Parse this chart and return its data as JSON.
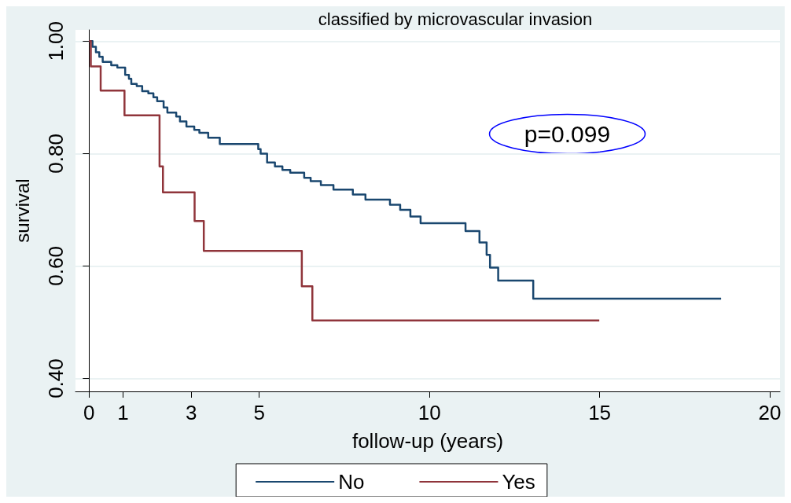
{
  "chart_data": {
    "type": "step",
    "title": "classified by microvascular invasion",
    "xlabel": "follow-up (years)",
    "ylabel": "survival",
    "xlim": [
      -0.4,
      20.3
    ],
    "xticks": [
      0,
      1,
      3,
      5,
      10,
      15,
      20
    ],
    "ylim": [
      0.377,
      1.02
    ],
    "yticks": [
      {
        "value": 0.4,
        "label": "0.40"
      },
      {
        "value": 0.6,
        "label": "0.60"
      },
      {
        "value": 0.8,
        "label": "0.80"
      },
      {
        "value": 1.0,
        "label": "1.00"
      }
    ],
    "grid": "y",
    "legend": "bottom",
    "marker": "none",
    "line_style": "solid",
    "annotations": [
      "p=0.099"
    ],
    "series": [
      {
        "name": "No",
        "color": "#1a476f",
        "x": [
          0,
          0.1,
          0.2,
          0.3,
          0.4,
          0.65,
          0.83,
          1.06,
          1.17,
          1.24,
          1.4,
          1.56,
          1.74,
          1.89,
          2.0,
          2.19,
          2.3,
          2.56,
          2.67,
          2.86,
          3.09,
          3.24,
          3.5,
          3.84,
          4.97,
          5.04,
          5.23,
          5.46,
          5.68,
          5.91,
          6.32,
          6.51,
          6.81,
          7.18,
          7.75,
          8.12,
          8.84,
          9.14,
          9.44,
          9.74,
          11.06,
          11.47,
          11.68,
          11.78,
          12.02,
          13.05,
          18.57
        ],
        "values": [
          1.0,
          0.99,
          0.98,
          0.972,
          0.963,
          0.957,
          0.953,
          0.94,
          0.933,
          0.924,
          0.92,
          0.911,
          0.907,
          0.9,
          0.893,
          0.882,
          0.873,
          0.866,
          0.857,
          0.848,
          0.842,
          0.837,
          0.828,
          0.817,
          0.808,
          0.8,
          0.784,
          0.777,
          0.771,
          0.766,
          0.757,
          0.751,
          0.744,
          0.736,
          0.727,
          0.718,
          0.709,
          0.7,
          0.688,
          0.676,
          0.662,
          0.642,
          0.62,
          0.597,
          0.574,
          0.542,
          0.542
        ]
      },
      {
        "name": "Yes",
        "color": "#90353b",
        "x": [
          0,
          0.05,
          0.34,
          1.04,
          2.07,
          2.17,
          3.1,
          3.37,
          6.25,
          6.56,
          14.99
        ],
        "values": [
          1.0,
          0.955,
          0.912,
          0.868,
          0.777,
          0.731,
          0.68,
          0.627,
          0.564,
          0.503,
          0.503
        ]
      }
    ]
  }
}
